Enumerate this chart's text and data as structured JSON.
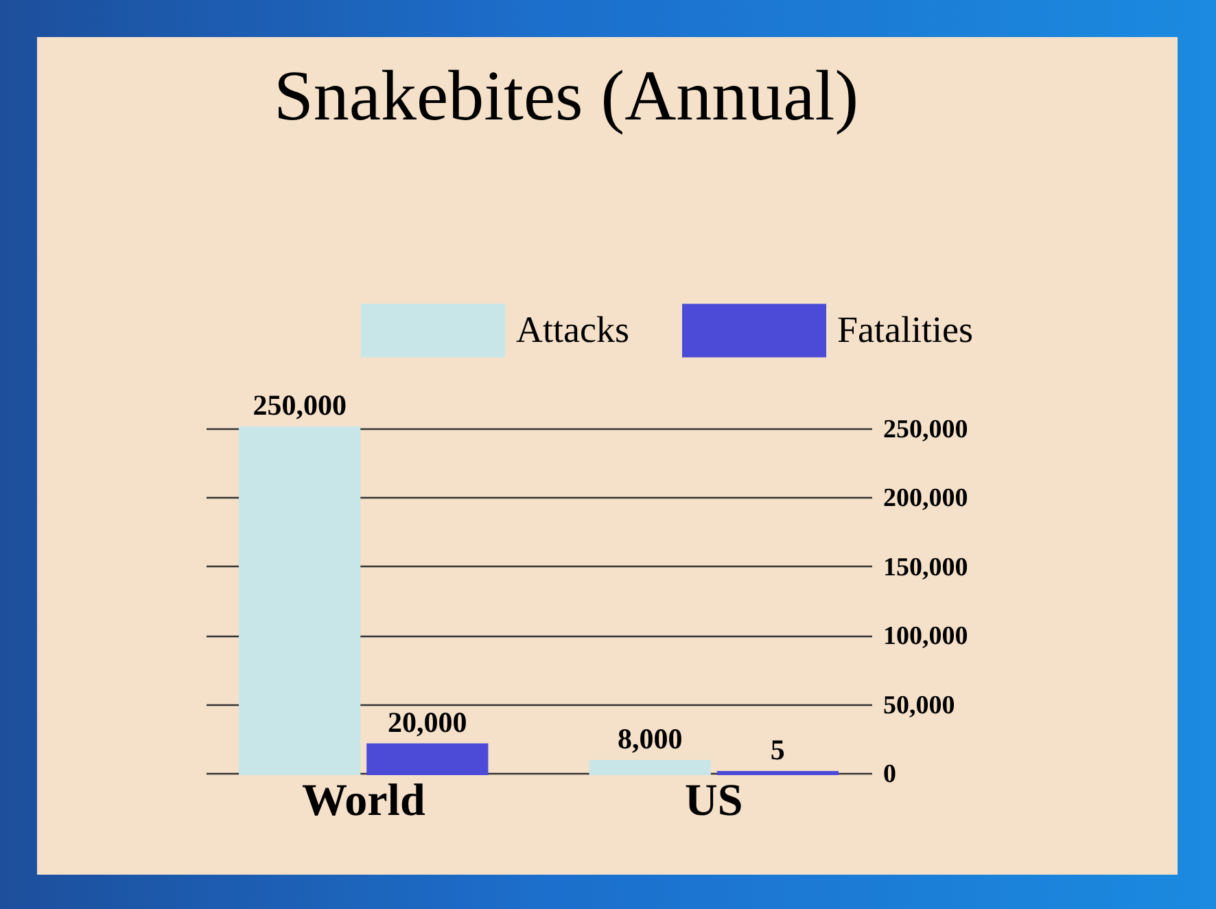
{
  "chart_data": {
    "type": "bar",
    "title": "Snakebites (Annual)",
    "categories": [
      "World",
      "US"
    ],
    "series": [
      {
        "name": "Attacks",
        "color": "#c8e6e8",
        "values": [
          250000,
          8000
        ],
        "value_labels": [
          "250,000",
          "8,000"
        ]
      },
      {
        "name": "Fatalities",
        "color": "#4b4bd8",
        "values": [
          20000,
          5
        ],
        "value_labels": [
          "20,000",
          "5"
        ]
      }
    ],
    "ylim": [
      0,
      250000
    ],
    "yticks": [
      0,
      {
        "value": 50000,
        "label": "50,000"
      },
      {
        "value": 100000,
        "label": "100,000"
      },
      {
        "value": 150000,
        "label": "150,000"
      },
      {
        "value": 200000,
        "label": "200,000"
      },
      {
        "value": 250000,
        "label": "250,000"
      }
    ],
    "grid": "y",
    "legend": "top"
  }
}
